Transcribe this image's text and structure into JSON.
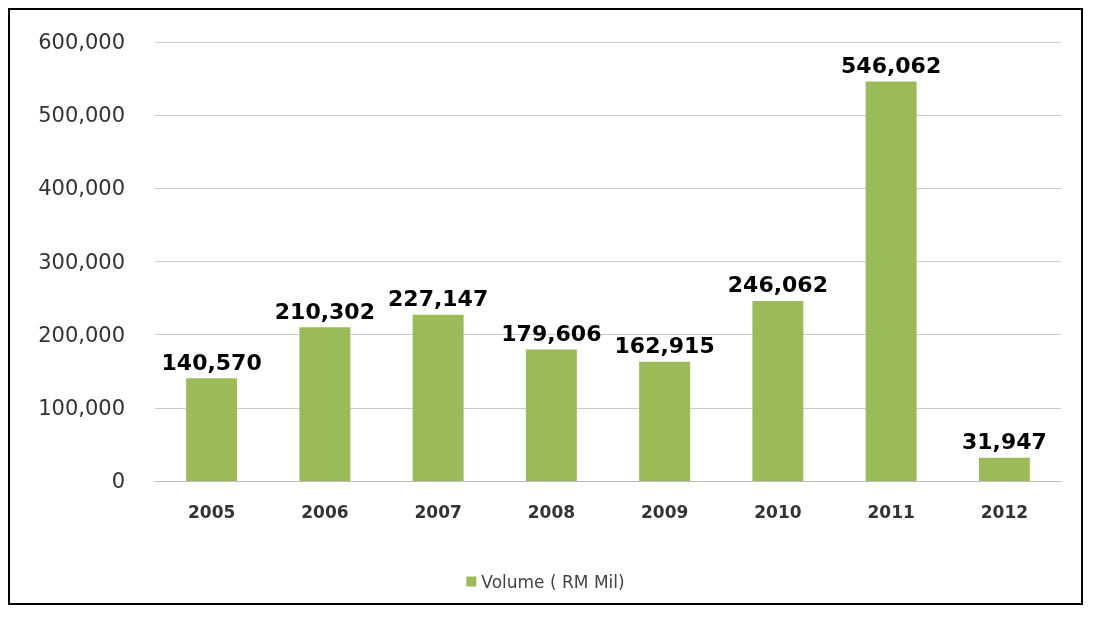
{
  "chart_data": {
    "type": "bar",
    "categories": [
      "2005",
      "2006",
      "2007",
      "2008",
      "2009",
      "2010",
      "2011",
      "2012"
    ],
    "series": [
      {
        "name": "Volume ( RM Mil)",
        "color": "#9bbb59",
        "values": [
          140570,
          210302,
          227147,
          179606,
          162915,
          246062,
          546062,
          31947
        ],
        "value_labels": [
          "140,570",
          "210,302",
          "227,147",
          "179,606",
          "162,915",
          "246,062",
          "546,062",
          "31,947"
        ]
      }
    ],
    "ylim": [
      0,
      600000
    ],
    "yticks": [
      {
        "value": 0,
        "label": "0"
      },
      {
        "value": 100000,
        "label": "100,000"
      },
      {
        "value": 200000,
        "label": "200,000"
      },
      {
        "value": 300000,
        "label": "300,000"
      },
      {
        "value": 400000,
        "label": "400,000"
      },
      {
        "value": 500000,
        "label": "500,000"
      },
      {
        "value": 600000,
        "label": "600,000"
      }
    ],
    "grid": "y",
    "legend": "bottom"
  }
}
